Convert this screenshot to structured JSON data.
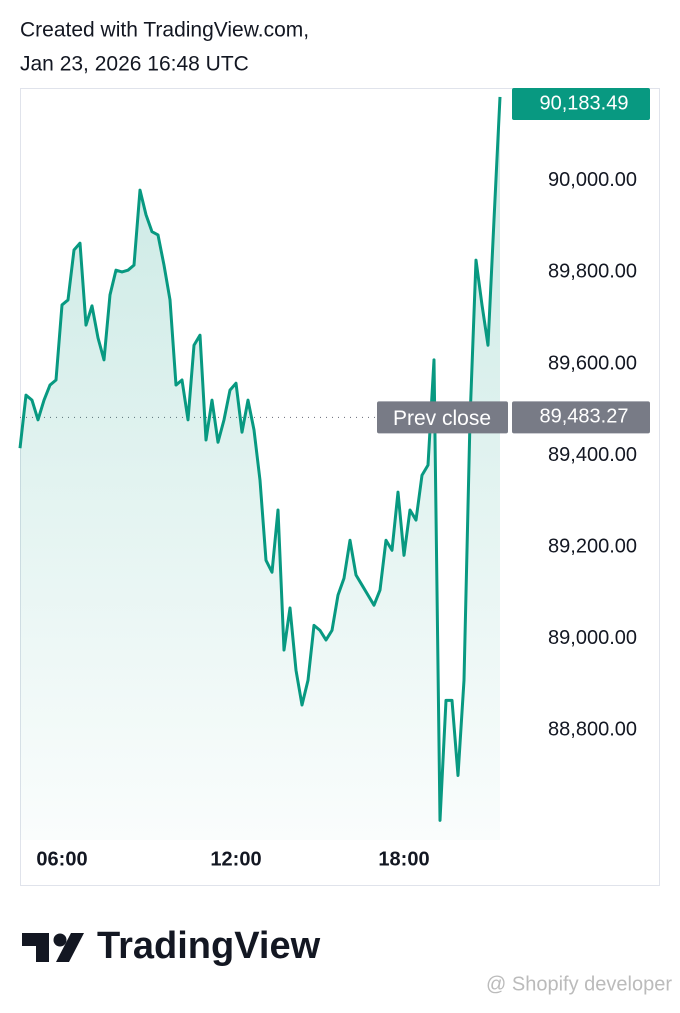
{
  "header": {
    "line1": "Created with TradingView.com,",
    "line2": "Jan 23, 2026 16:48 UTC"
  },
  "chart_data": {
    "type": "line",
    "color": "#089981",
    "categories": [
      null,
      null,
      null,
      null,
      null,
      null,
      null,
      "06:00",
      null,
      null,
      null,
      null,
      null,
      null,
      null,
      null,
      null,
      null,
      null,
      null,
      null,
      null,
      null,
      null,
      null,
      null,
      null,
      null,
      null,
      null,
      null,
      null,
      null,
      null,
      null,
      null,
      "12:00",
      null,
      null,
      null,
      null,
      null,
      null,
      null,
      null,
      null,
      null,
      null,
      null,
      null,
      null,
      null,
      null,
      null,
      null,
      null,
      null,
      null,
      null,
      null,
      null,
      null,
      null,
      null,
      "18:00",
      null,
      null,
      null,
      null,
      null,
      null,
      null,
      null,
      null,
      null,
      null,
      null,
      null,
      null,
      null,
      null
    ],
    "values": [
      89416,
      89532,
      89521,
      89478,
      89521,
      89554,
      89565,
      89729,
      89740,
      89849,
      89864,
      89685,
      89727,
      89657,
      89609,
      89751,
      89805,
      89801,
      89805,
      89816,
      89980,
      89926,
      89889,
      89882,
      89816,
      89740,
      89554,
      89565,
      89478,
      89641,
      89663,
      89434,
      89521,
      89429,
      89478,
      89543,
      89558,
      89451,
      89521,
      89456,
      89346,
      89171,
      89145,
      89281,
      88975,
      89067,
      88931,
      88855,
      88909,
      89029,
      89018,
      88997,
      89018,
      89095,
      89132,
      89215,
      89139,
      89117,
      89095,
      89073,
      89106,
      89215,
      89193,
      89320,
      89182,
      89281,
      89259,
      89357,
      89379,
      89609,
      88603,
      88865,
      88865,
      88701,
      88909,
      89478,
      89827,
      89729,
      89641,
      89915,
      90183.49
    ],
    "ylim": [
      88560,
      90203
    ],
    "yticks": [
      {
        "value": 88800,
        "label": "88,800.00"
      },
      {
        "value": 89000,
        "label": "89,000.00"
      },
      {
        "value": 89200,
        "label": "89,200.00"
      },
      {
        "value": 89400,
        "label": "89,400.00"
      },
      {
        "value": 89600,
        "label": "89,600.00"
      },
      {
        "value": 89800,
        "label": "89,800.00"
      },
      {
        "value": 90000,
        "label": "90,000.00"
      }
    ],
    "last_value": 90183.49,
    "last_value_label": "90,183.49",
    "prev_close": {
      "label": "Prev close",
      "value": 89483.27,
      "value_label": "89,483.27"
    }
  },
  "footer": {
    "logo": "TradingView",
    "watermark": "@ Shopify developer"
  }
}
